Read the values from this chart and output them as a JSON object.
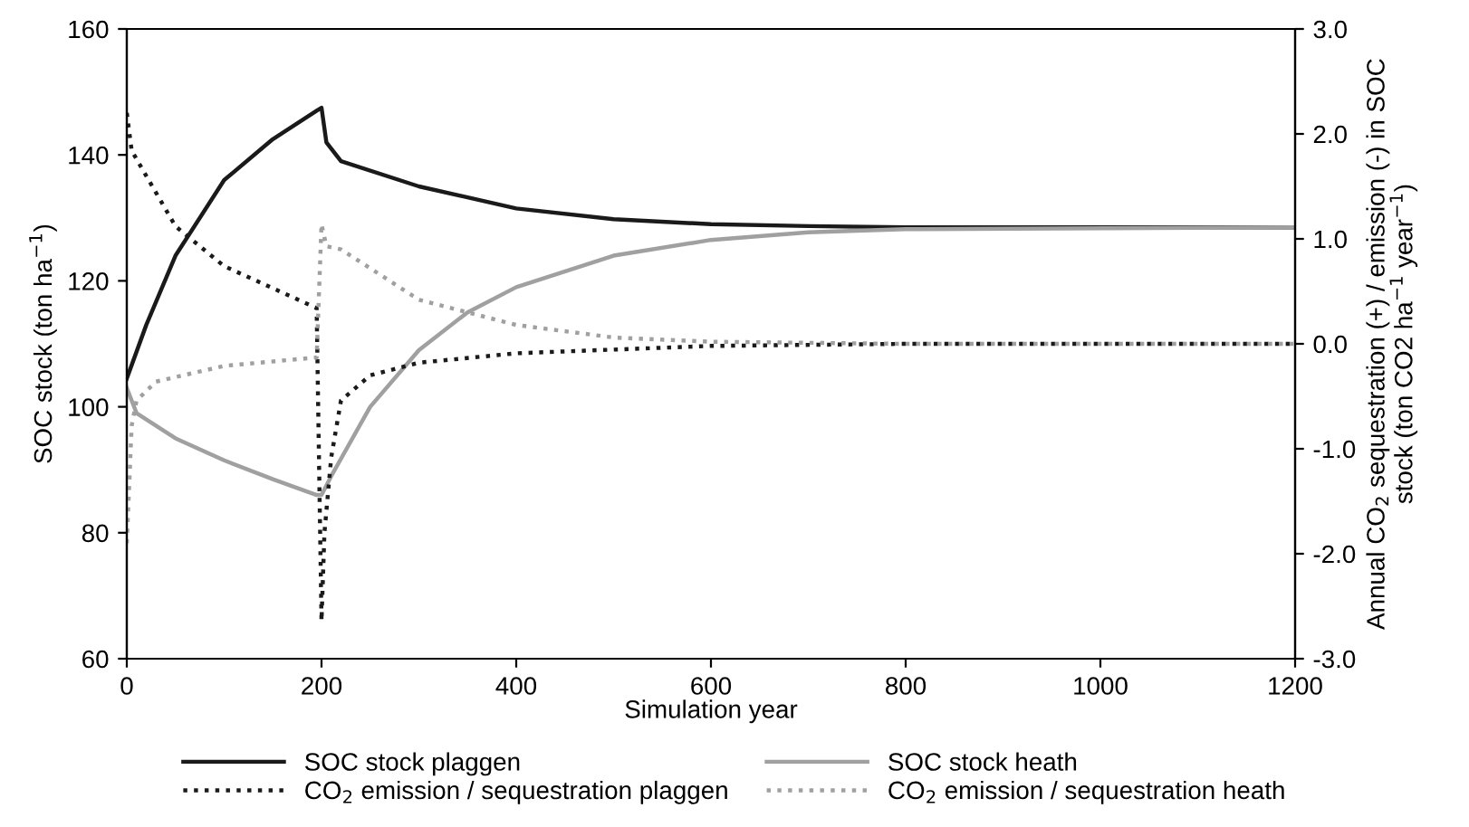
{
  "chart_data": {
    "type": "line",
    "xlabel": "Simulation year",
    "ylabel": "SOC stock (ton ha$^{−1}$)",
    "y2label": "Annual CO$_{2}$ sequestration (+) / emission (-) in SOC\nstock (ton CO2 ha$^{−1}$ year$^{−1}$)",
    "xlim": [
      0,
      1200
    ],
    "xticks": [
      0,
      200,
      400,
      600,
      800,
      1000,
      1200
    ],
    "ylim": [
      60,
      160
    ],
    "yticks": [
      60,
      80,
      100,
      120,
      140,
      160
    ],
    "y2lim": [
      -3,
      3
    ],
    "y2ticks": [
      {
        "value": -3,
        "label": "-3.0"
      },
      {
        "value": -2,
        "label": "-2.0"
      },
      {
        "value": -1,
        "label": "-1.0"
      },
      {
        "value": 0,
        "label": "0.0"
      },
      {
        "value": 1,
        "label": "1.0"
      },
      {
        "value": 2,
        "label": "2.0"
      },
      {
        "value": 3,
        "label": "3.0"
      }
    ],
    "legend": "bottom",
    "grid": false,
    "marker": "none",
    "series": [
      {
        "name": "SOC stock plaggen",
        "color": "#1a1a1a",
        "line_style": "solid",
        "x": [
          0,
          20,
          50,
          100,
          150,
          195,
          200,
          205,
          220,
          300,
          400,
          500,
          600,
          700,
          800,
          1200
        ],
        "values": [
          104.5,
          113,
          124,
          136,
          142.5,
          147,
          147.5,
          142,
          139,
          135,
          131.5,
          129.8,
          129,
          128.7,
          128.5,
          128.5
        ]
      },
      {
        "name": "SOC stock heath",
        "color": "#a0a0a0",
        "line_style": "solid",
        "x": [
          0,
          10,
          50,
          100,
          150,
          195,
          200,
          210,
          250,
          300,
          350,
          400,
          500,
          600,
          700,
          800,
          1200
        ],
        "values": [
          103,
          99,
          95,
          91.5,
          88.5,
          86,
          86,
          89,
          100,
          109,
          115,
          119,
          124,
          126.5,
          127.7,
          128.2,
          128.5
        ]
      },
      {
        "name": "CO$_{2}$ emission / sequestration plaggen",
        "color": "#1a1a1a",
        "line_style": "dotted",
        "axis": "y2",
        "x": [
          0,
          5,
          50,
          100,
          150,
          195,
          200,
          203,
          210,
          220,
          250,
          300,
          400,
          600,
          800,
          1200
        ],
        "values": [
          2.2,
          1.84,
          1.12,
          0.74,
          0.53,
          0.34,
          -2.64,
          -1.8,
          -1.08,
          -0.54,
          -0.3,
          -0.18,
          -0.09,
          -0.02,
          0,
          0
        ]
      },
      {
        "name": "CO$_{2}$ emission / sequestration heath",
        "color": "#a0a0a0",
        "line_style": "dotted",
        "axis": "y2",
        "x": [
          0,
          5,
          10,
          30,
          100,
          195,
          200,
          205,
          220,
          300,
          400,
          500,
          600,
          800,
          1200
        ],
        "values": [
          -1.9,
          -0.78,
          -0.54,
          -0.36,
          -0.21,
          -0.13,
          1.14,
          0.93,
          0.9,
          0.42,
          0.18,
          0.06,
          0.02,
          0,
          0
        ]
      }
    ]
  }
}
